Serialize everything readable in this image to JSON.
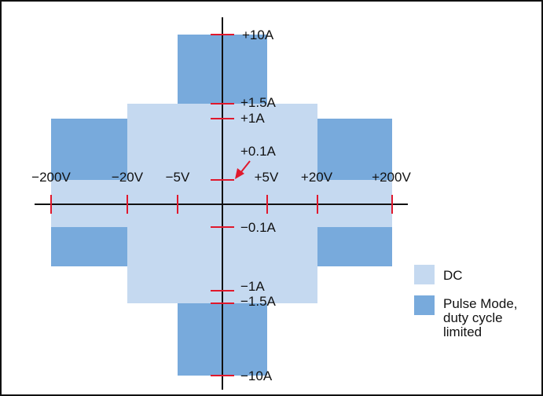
{
  "colors": {
    "dc": "#c5d9f0",
    "pulse": "#78aadc",
    "axis": "#111111",
    "tick": "#e0182c",
    "arrow": "#e0182c",
    "border": "#111111"
  },
  "voltage_labels": [
    {
      "id": "neg200",
      "text": "−200V",
      "value": -200
    },
    {
      "id": "neg20",
      "text": "−20V",
      "value": -20
    },
    {
      "id": "neg5",
      "text": "−5V",
      "value": -5
    },
    {
      "id": "pos5",
      "text": "+5V",
      "value": 5
    },
    {
      "id": "pos20",
      "text": "+20V",
      "value": 20
    },
    {
      "id": "pos200",
      "text": "+200V",
      "value": 200
    }
  ],
  "current_labels": [
    {
      "id": "pos10",
      "text": "+10A",
      "value": 10
    },
    {
      "id": "pos1_5",
      "text": "+1.5A",
      "value": 1.5
    },
    {
      "id": "pos1",
      "text": "+1A",
      "value": 1
    },
    {
      "id": "pos0_1",
      "text": "+0.1A",
      "value": 0.1
    },
    {
      "id": "neg0_1",
      "text": "−0.1A",
      "value": -0.1
    },
    {
      "id": "neg1",
      "text": "−1A",
      "value": -1
    },
    {
      "id": "neg1_5",
      "text": "−1.5A",
      "value": -1.5
    },
    {
      "id": "neg10",
      "text": "−10A",
      "value": -10
    }
  ],
  "legend": {
    "dc_label": "DC",
    "pulse_line1": "Pulse Mode,",
    "pulse_line2": "duty cycle",
    "pulse_line3": "limited"
  }
}
